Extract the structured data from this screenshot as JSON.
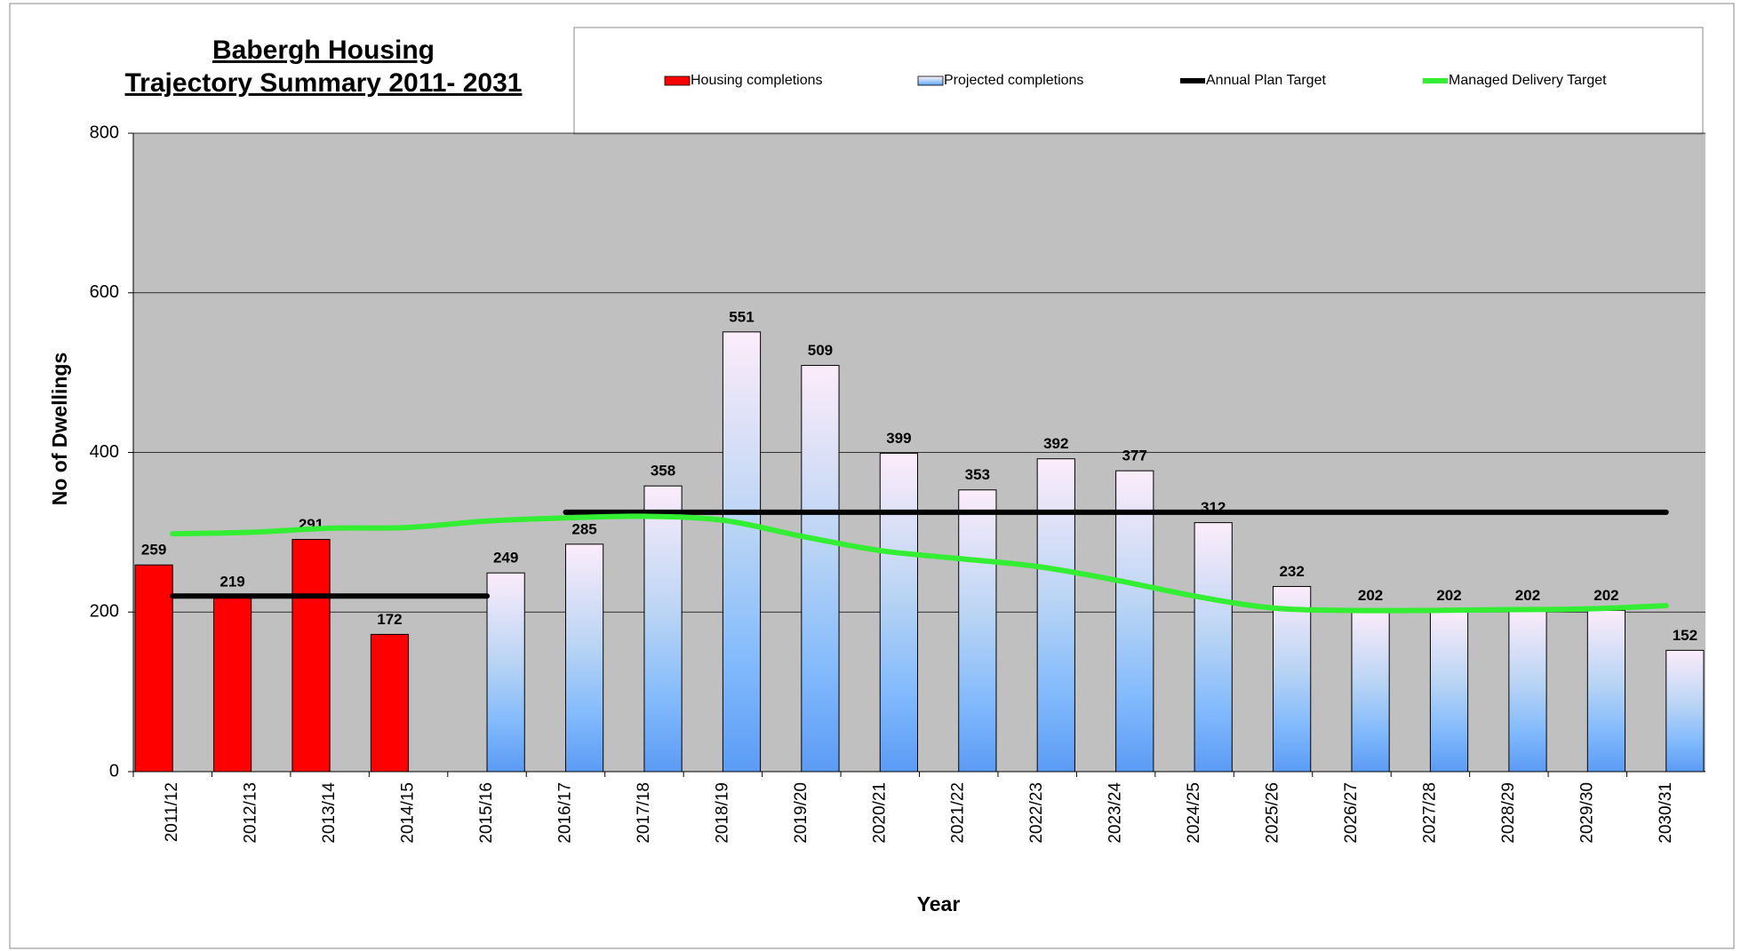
{
  "chart_data": {
    "type": "bar",
    "title": "Babergh Housing",
    "subtitle": "Trajectory Summary  2011- 2031",
    "x_label": "Year",
    "y_label": "No of Dwellings",
    "categories": [
      "2011/12",
      "2012/13",
      "2013/14",
      "2014/15",
      "2015/16",
      "2016/17",
      "2017/18",
      "2018/19",
      "2019/20",
      "2020/21",
      "2021/22",
      "2022/23",
      "2023/24",
      "2024/25",
      "2025/26",
      "2026/27",
      "2027/28",
      "2028/29",
      "2029/30",
      "2030/31"
    ],
    "series": [
      {
        "name": "Housing completions",
        "type": "bar",
        "color": "#ff0000",
        "values": [
          259,
          219,
          291,
          172,
          null,
          null,
          null,
          null,
          null,
          null,
          null,
          null,
          null,
          null,
          null,
          null,
          null,
          null,
          null,
          null
        ]
      },
      {
        "name": "Projected completions",
        "type": "bar",
        "color": "#5b9bf5",
        "values": [
          null,
          null,
          null,
          null,
          249,
          285,
          358,
          551,
          509,
          399,
          353,
          392,
          377,
          312,
          232,
          202,
          202,
          202,
          202,
          152
        ]
      },
      {
        "name": "Annual Plan Target",
        "type": "line",
        "color": "#000000",
        "values": [
          220,
          220,
          220,
          220,
          220,
          325,
          325,
          325,
          325,
          325,
          325,
          325,
          325,
          325,
          325,
          325,
          325,
          325,
          325,
          325
        ]
      },
      {
        "name": "Managed Delivery Target",
        "type": "line",
        "color": "#33ee33",
        "values": [
          298,
          300,
          305,
          306,
          314,
          318,
          320,
          315,
          295,
          277,
          267,
          257,
          240,
          220,
          205,
          202,
          202,
          203,
          204,
          208
        ]
      }
    ],
    "ylim": [
      0,
      800
    ],
    "yticks": [
      0,
      200,
      400,
      600,
      800
    ],
    "grid": true
  }
}
